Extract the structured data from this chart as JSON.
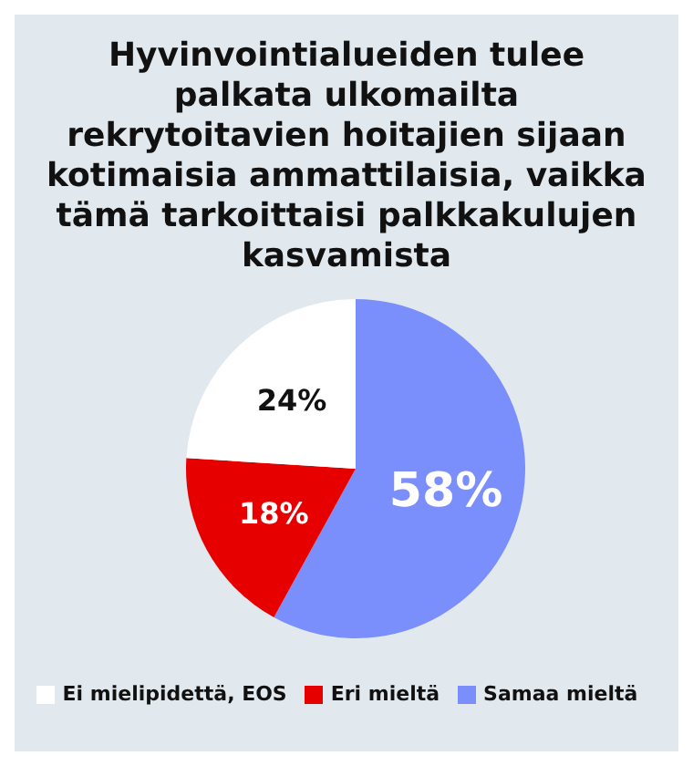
{
  "chart_data": {
    "type": "pie",
    "title": "Hyvinvointialueiden tulee palkata ulkomailta rekrytoitavien hoitajien sijaan kotimaisia ammattilaisia, vaikka tämä tarkoittaisi palkkakulujen kasvamista",
    "categories": [
      "Samaa mieltä",
      "Eri mieltä",
      "Ei mielipidettä, EOS"
    ],
    "values": [
      58,
      18,
      24
    ],
    "colors": [
      "#7b8ffc",
      "#e60000",
      "#ffffff"
    ],
    "value_labels": [
      "58%",
      "18%",
      "24%"
    ],
    "legend": "bottom"
  }
}
